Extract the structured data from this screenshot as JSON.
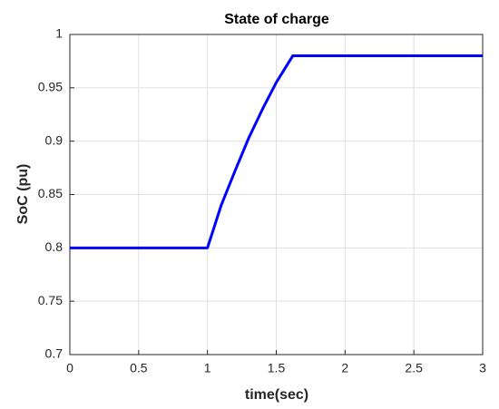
{
  "chart_data": {
    "type": "line",
    "title": "State of charge",
    "x_label": "time(sec)",
    "y_label": "SoC (pu)",
    "x": [
      0,
      1,
      1.1,
      1.2,
      1.3,
      1.4,
      1.5,
      1.62,
      3
    ],
    "series": [
      {
        "color": "#0000ff",
        "values": [
          0.8,
          0.8,
          0.84,
          0.872,
          0.903,
          0.93,
          0.955,
          0.98,
          0.98
        ]
      }
    ],
    "xlim": [
      0,
      3
    ],
    "xticks": [
      0,
      0.5,
      1,
      1.5,
      2,
      2.5,
      3
    ],
    "ylim": [
      0.7,
      1
    ],
    "yticks": [
      0.7,
      0.75,
      0.8,
      0.85,
      0.9,
      0.95,
      1
    ],
    "grid": true
  }
}
